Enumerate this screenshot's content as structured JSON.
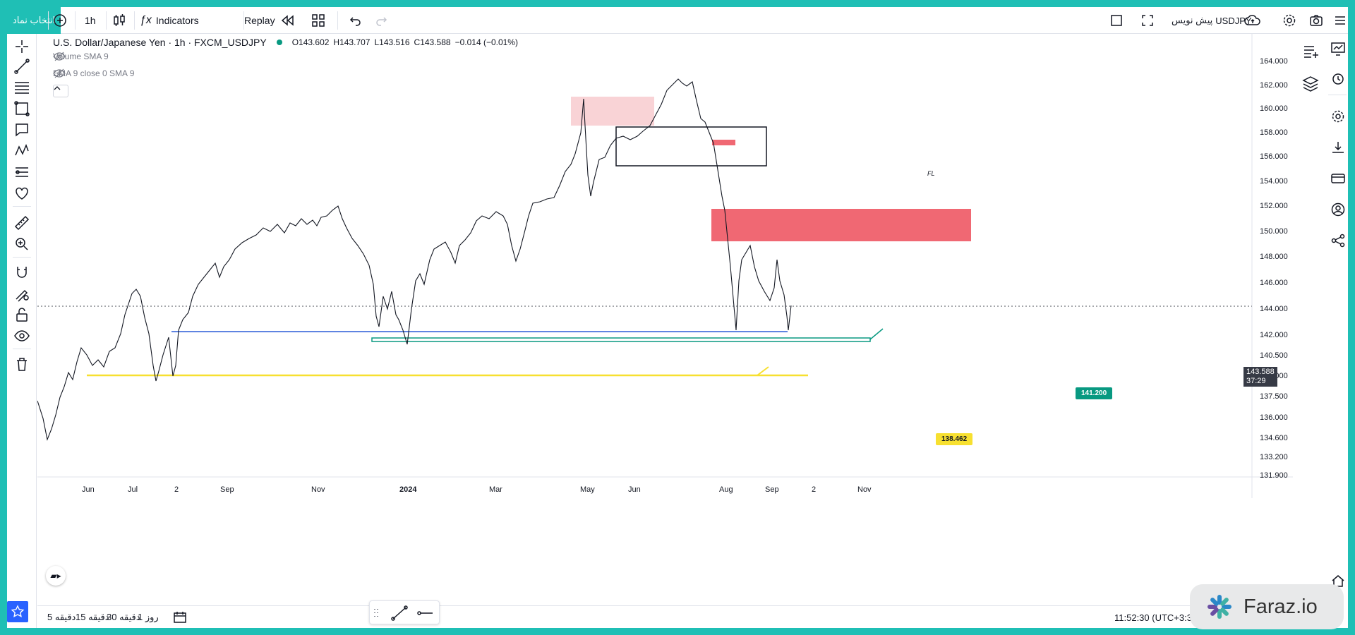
{
  "topbar": {
    "symbol_search": "انتخاب نماد",
    "interval": "1h",
    "indicators_label": "Indicators",
    "replay_label": "Replay",
    "preview_label": "پیش نویس",
    "ticker": "USDJPY"
  },
  "legend": {
    "title": "U.S. Dollar/Japanese Yen · 1h · FXCM_USDJPY",
    "open": "O143.602",
    "high": "H143.707",
    "low": "L143.516",
    "close": "C143.588",
    "change": "−0.014 (−0.01%)",
    "indicator_1": "Volume SMA 9",
    "indicator_2": "EMA 9 close 0 SMA 9",
    "status_color": "#089981"
  },
  "price_axis": {
    "labels": [
      "164.000",
      "162.000",
      "160.000",
      "158.000",
      "156.000",
      "154.000",
      "152.000",
      "150.000",
      "148.000",
      "146.000",
      "144.000",
      "142.000",
      "140.500",
      "139.000",
      "137.500",
      "136.000",
      "134.600",
      "133.200",
      "131.900"
    ],
    "current_price": "143.588",
    "countdown": "37:29"
  },
  "time_axis": {
    "labels": [
      "Jun",
      "Jul",
      "2",
      "Sep",
      "Nov",
      "2024",
      "Mar",
      "May",
      "Jun",
      "Aug",
      "Sep",
      "2",
      "Nov"
    ]
  },
  "callouts": {
    "green_level": "141.200",
    "yellow_level": "138.462",
    "box_note": "FL"
  },
  "bottombar": {
    "ranges": [
      "5 دقیقه",
      "15 دقیقه",
      "30 دقیقه",
      "1 روز"
    ],
    "clock": "11:52:30 (UTC+3:30)"
  },
  "watermark": {
    "text": "Faraz.io"
  },
  "colors": {
    "teal_frame": "#1fbfb5",
    "supply_zone_light": "#f9d3d6",
    "supply_zone_strong": "#f06873",
    "support_blue": "#2a5bd7",
    "support_green": "#089981",
    "support_yellow": "#f7e030"
  }
}
